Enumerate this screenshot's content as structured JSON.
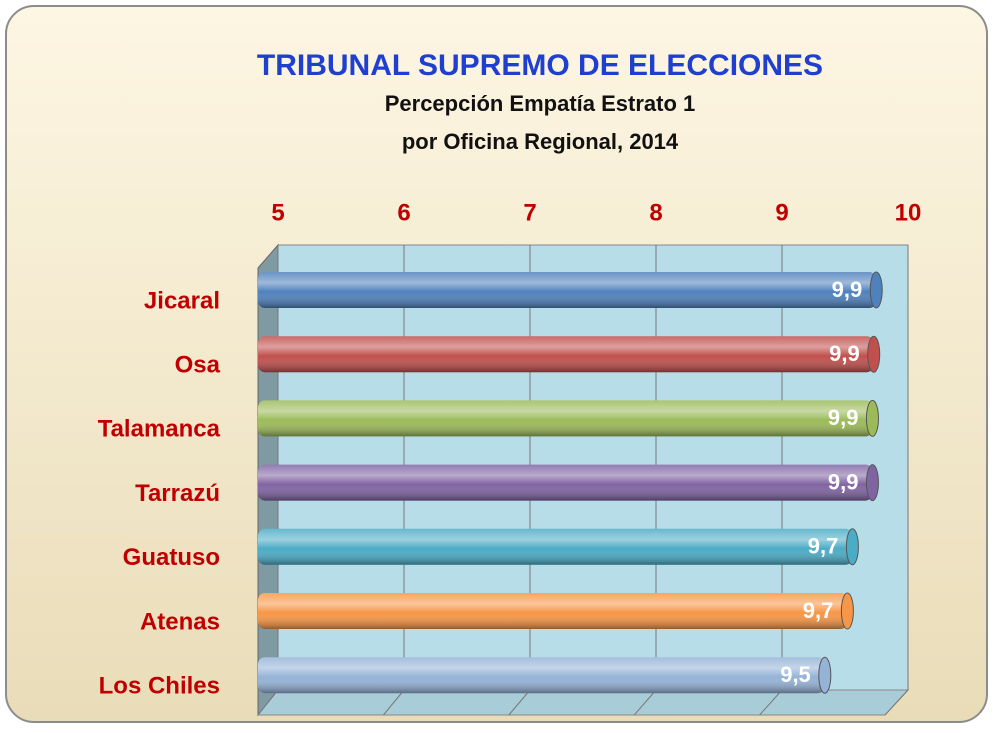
{
  "chart_data": {
    "type": "bar",
    "orientation": "horizontal",
    "title": "TRIBUNAL SUPREMO DE ELECCIONES",
    "subtitle": [
      "Percepción Empatía Estrato 1",
      "por Oficina Regional, 2014"
    ],
    "categories": [
      "Jicaral",
      "Osa",
      "Talamanca",
      "Tarrazú",
      "Guatuso",
      "Atenas",
      "Los Chiles"
    ],
    "values": [
      9.93,
      9.91,
      9.9,
      9.9,
      9.74,
      9.7,
      9.52
    ],
    "value_labels": [
      "9,9",
      "9,9",
      "9,9",
      "9,9",
      "9,7",
      "9,7",
      "9,5"
    ],
    "colors": [
      "#4f81bd",
      "#c0504d",
      "#9bbb59",
      "#8064a2",
      "#4bacc6",
      "#f79646",
      "#95b3d7"
    ],
    "xlim": [
      5,
      10
    ],
    "xticks": [
      5,
      6,
      7,
      8,
      9,
      10
    ],
    "grid": true
  }
}
